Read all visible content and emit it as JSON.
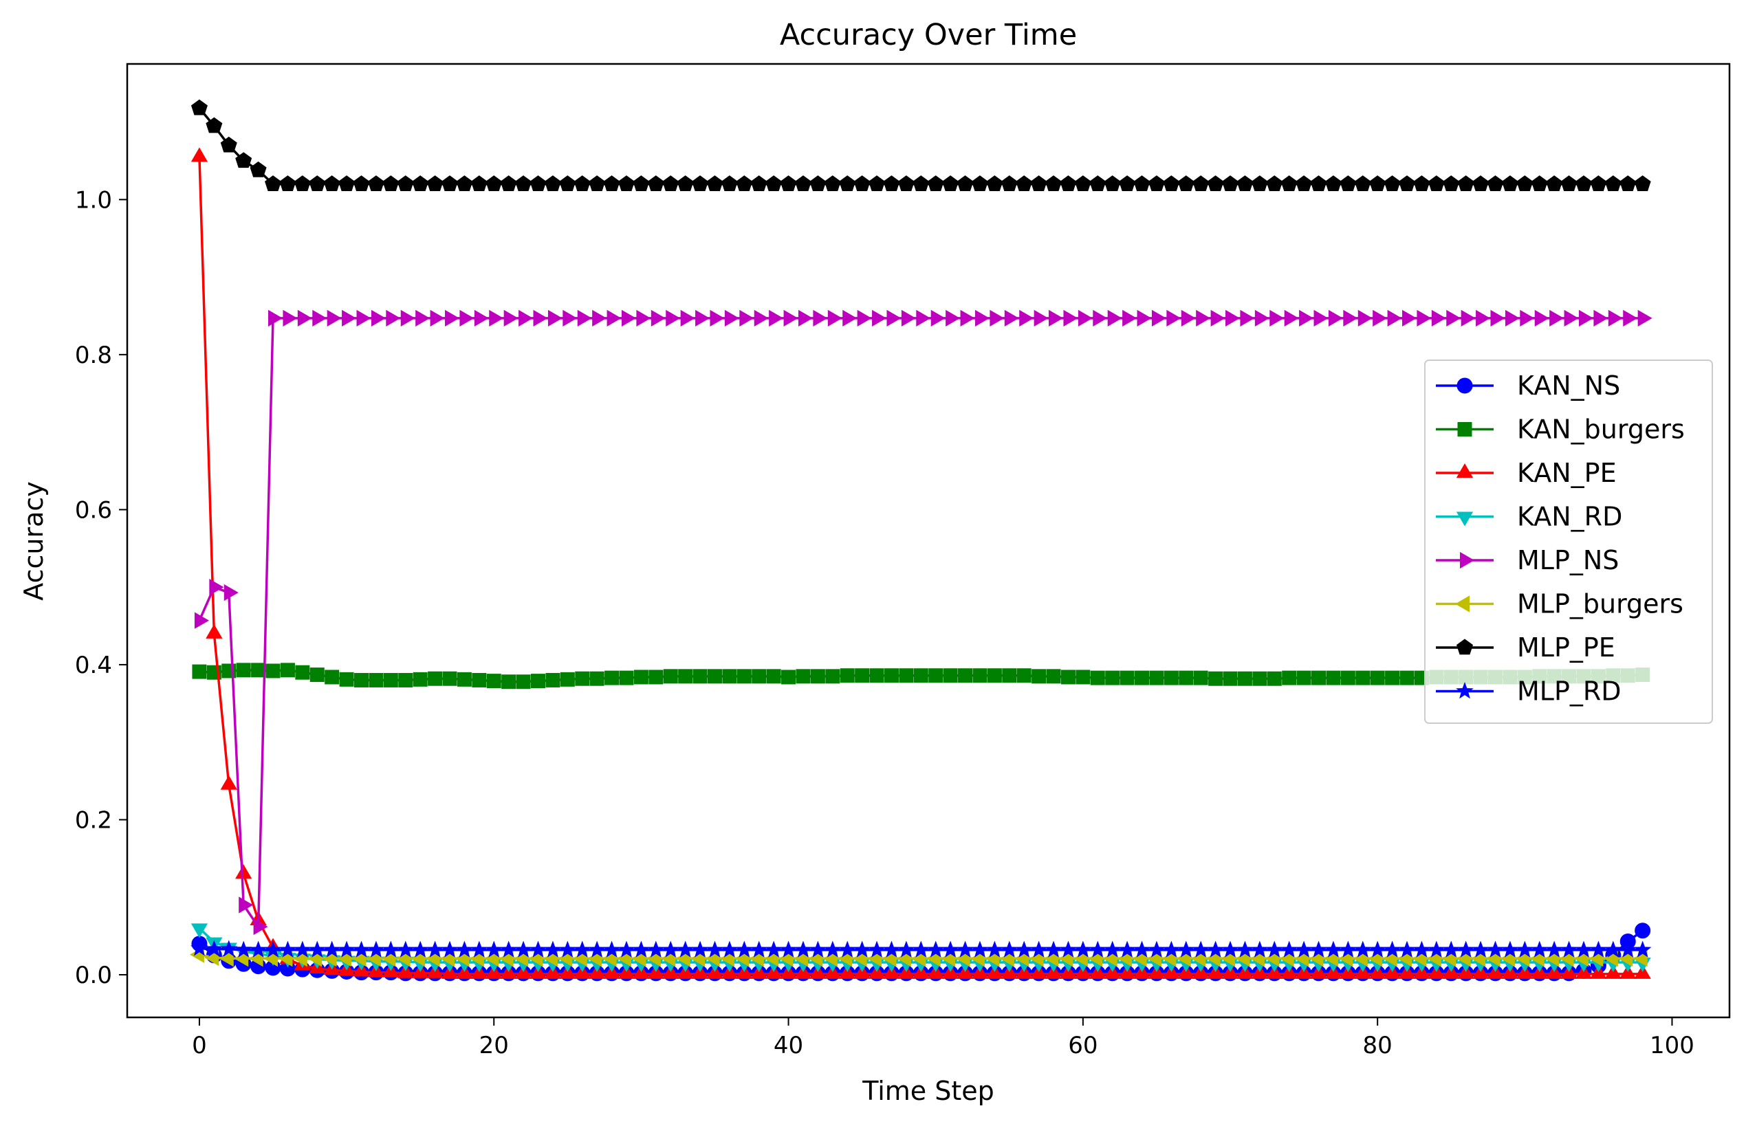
{
  "chart_data": {
    "type": "line",
    "title": "Accuracy Over Time",
    "xlabel": "Time Step",
    "ylabel": "Accuracy",
    "xlim": [
      -4.9,
      103.9
    ],
    "ylim": [
      -0.055,
      1.175
    ],
    "xticks": [
      0,
      20,
      40,
      60,
      80,
      100
    ],
    "yticks": [
      0.0,
      0.2,
      0.4,
      0.6,
      0.8,
      1.0
    ],
    "xtick_labels": [
      "0",
      "20",
      "40",
      "60",
      "80",
      "100"
    ],
    "ytick_labels": [
      "0.0",
      "0.2",
      "0.4",
      "0.6",
      "0.8",
      "1.0"
    ],
    "grid": false,
    "legend_position": "center-right",
    "x": [
      0,
      1,
      2,
      3,
      4,
      5,
      6,
      7,
      8,
      9,
      10,
      11,
      12,
      13,
      14,
      15,
      16,
      17,
      18,
      19,
      20,
      21,
      22,
      23,
      24,
      25,
      26,
      27,
      28,
      29,
      30,
      31,
      32,
      33,
      34,
      35,
      36,
      37,
      38,
      39,
      40,
      41,
      42,
      43,
      44,
      45,
      46,
      47,
      48,
      49,
      50,
      51,
      52,
      53,
      54,
      55,
      56,
      57,
      58,
      59,
      60,
      61,
      62,
      63,
      64,
      65,
      66,
      67,
      68,
      69,
      70,
      71,
      72,
      73,
      74,
      75,
      76,
      77,
      78,
      79,
      80,
      81,
      82,
      83,
      84,
      85,
      86,
      87,
      88,
      89,
      90,
      91,
      92,
      93,
      94,
      95,
      96,
      97,
      98
    ],
    "series": [
      {
        "name": "KAN_NS",
        "color": "#0000ff",
        "marker": "circle",
        "values": [
          0.04,
          0.025,
          0.018,
          0.014,
          0.011,
          0.009,
          0.008,
          0.007,
          0.006,
          0.005,
          0.004,
          0.003,
          0.003,
          0.003,
          0.002,
          0.002,
          0.002,
          0.002,
          0.002,
          0.002,
          0.002,
          0.002,
          0.002,
          0.002,
          0.002,
          0.002,
          0.002,
          0.002,
          0.002,
          0.002,
          0.002,
          0.002,
          0.002,
          0.002,
          0.002,
          0.002,
          0.002,
          0.002,
          0.002,
          0.002,
          0.002,
          0.002,
          0.002,
          0.002,
          0.002,
          0.002,
          0.002,
          0.002,
          0.002,
          0.002,
          0.002,
          0.002,
          0.002,
          0.002,
          0.002,
          0.002,
          0.002,
          0.002,
          0.002,
          0.002,
          0.002,
          0.002,
          0.002,
          0.002,
          0.002,
          0.002,
          0.002,
          0.002,
          0.002,
          0.002,
          0.002,
          0.002,
          0.002,
          0.002,
          0.002,
          0.002,
          0.002,
          0.002,
          0.002,
          0.002,
          0.002,
          0.002,
          0.002,
          0.002,
          0.002,
          0.002,
          0.002,
          0.002,
          0.002,
          0.002,
          0.002,
          0.002,
          0.002,
          0.002,
          0.005,
          0.012,
          0.025,
          0.043,
          0.057
        ]
      },
      {
        "name": "KAN_burgers",
        "color": "#008000",
        "marker": "square",
        "values": [
          0.391,
          0.39,
          0.392,
          0.393,
          0.393,
          0.392,
          0.393,
          0.39,
          0.387,
          0.384,
          0.381,
          0.38,
          0.38,
          0.38,
          0.38,
          0.381,
          0.382,
          0.382,
          0.381,
          0.38,
          0.379,
          0.378,
          0.378,
          0.379,
          0.38,
          0.381,
          0.382,
          0.382,
          0.383,
          0.383,
          0.384,
          0.384,
          0.385,
          0.385,
          0.385,
          0.385,
          0.385,
          0.385,
          0.385,
          0.385,
          0.384,
          0.385,
          0.385,
          0.385,
          0.386,
          0.386,
          0.386,
          0.386,
          0.386,
          0.386,
          0.386,
          0.386,
          0.386,
          0.386,
          0.386,
          0.386,
          0.386,
          0.385,
          0.385,
          0.384,
          0.384,
          0.383,
          0.383,
          0.383,
          0.383,
          0.383,
          0.383,
          0.383,
          0.383,
          0.382,
          0.382,
          0.382,
          0.382,
          0.382,
          0.383,
          0.383,
          0.383,
          0.383,
          0.383,
          0.383,
          0.383,
          0.383,
          0.383,
          0.383,
          0.384,
          0.384,
          0.384,
          0.384,
          0.384,
          0.384,
          0.384,
          0.385,
          0.385,
          0.385,
          0.385,
          0.385,
          0.386,
          0.386,
          0.387
        ]
      },
      {
        "name": "KAN_PE",
        "color": "#ff0000",
        "marker": "triangle-up",
        "values": [
          1.055,
          0.44,
          0.245,
          0.13,
          0.07,
          0.035,
          0.02,
          0.012,
          0.008,
          0.006,
          0.005,
          0.004,
          0.003,
          0.003,
          0.002,
          0.002,
          0.002,
          0.001,
          0.001,
          0.001,
          0.001,
          0.001,
          0.001,
          0.001,
          0.001,
          0.001,
          0.001,
          0.001,
          0.001,
          0.001,
          0.001,
          0.001,
          0.001,
          0.001,
          0.001,
          0.001,
          0.001,
          0.001,
          0.001,
          0.001,
          0.001,
          0.001,
          0.001,
          0.001,
          0.001,
          0.001,
          0.001,
          0.001,
          0.001,
          0.001,
          0.001,
          0.001,
          0.001,
          0.001,
          0.001,
          0.001,
          0.001,
          0.001,
          0.001,
          0.001,
          0.001,
          0.001,
          0.001,
          0.001,
          0.001,
          0.001,
          0.001,
          0.001,
          0.001,
          0.001,
          0.001,
          0.001,
          0.001,
          0.001,
          0.001,
          0.001,
          0.001,
          0.001,
          0.001,
          0.001,
          0.001,
          0.001,
          0.001,
          0.001,
          0.001,
          0.001,
          0.001,
          0.001,
          0.001,
          0.001,
          0.001,
          0.001,
          0.001,
          0.001,
          0.001,
          0.001,
          0.001,
          0.001,
          0.001
        ]
      },
      {
        "name": "KAN_RD",
        "color": "#00bfbf",
        "marker": "triangle-down",
        "values": [
          0.06,
          0.042,
          0.035,
          0.03,
          0.027,
          0.024,
          0.022,
          0.021,
          0.02,
          0.019,
          0.018,
          0.018,
          0.017,
          0.017,
          0.017,
          0.016,
          0.016,
          0.016,
          0.016,
          0.016,
          0.016,
          0.016,
          0.016,
          0.016,
          0.016,
          0.016,
          0.016,
          0.016,
          0.016,
          0.016,
          0.016,
          0.016,
          0.016,
          0.016,
          0.016,
          0.016,
          0.016,
          0.016,
          0.016,
          0.016,
          0.016,
          0.016,
          0.016,
          0.016,
          0.016,
          0.016,
          0.016,
          0.016,
          0.016,
          0.016,
          0.016,
          0.016,
          0.016,
          0.016,
          0.016,
          0.016,
          0.016,
          0.016,
          0.016,
          0.016,
          0.016,
          0.016,
          0.016,
          0.016,
          0.016,
          0.016,
          0.016,
          0.016,
          0.016,
          0.016,
          0.016,
          0.016,
          0.016,
          0.016,
          0.016,
          0.016,
          0.016,
          0.016,
          0.016,
          0.016,
          0.016,
          0.016,
          0.016,
          0.016,
          0.016,
          0.016,
          0.016,
          0.016,
          0.016,
          0.016,
          0.016,
          0.016,
          0.016,
          0.016,
          0.016,
          0.016,
          0.016,
          0.016,
          0.016
        ]
      },
      {
        "name": "MLP_NS",
        "color": "#bf00bf",
        "marker": "triangle-right",
        "values": [
          0.457,
          0.5,
          0.493,
          0.09,
          0.062,
          0.847,
          0.847,
          0.847,
          0.847,
          0.847,
          0.847,
          0.847,
          0.847,
          0.847,
          0.847,
          0.847,
          0.847,
          0.847,
          0.847,
          0.847,
          0.847,
          0.847,
          0.847,
          0.847,
          0.847,
          0.847,
          0.847,
          0.847,
          0.847,
          0.847,
          0.847,
          0.847,
          0.847,
          0.847,
          0.847,
          0.847,
          0.847,
          0.847,
          0.847,
          0.847,
          0.847,
          0.847,
          0.847,
          0.847,
          0.847,
          0.847,
          0.847,
          0.847,
          0.847,
          0.847,
          0.847,
          0.847,
          0.847,
          0.847,
          0.847,
          0.847,
          0.847,
          0.847,
          0.847,
          0.847,
          0.847,
          0.847,
          0.847,
          0.847,
          0.847,
          0.847,
          0.847,
          0.847,
          0.847,
          0.847,
          0.847,
          0.847,
          0.847,
          0.847,
          0.847,
          0.847,
          0.847,
          0.847,
          0.847,
          0.847,
          0.847,
          0.847,
          0.847,
          0.847,
          0.847,
          0.847,
          0.847,
          0.847,
          0.847,
          0.847,
          0.847,
          0.847,
          0.847,
          0.847,
          0.847,
          0.847,
          0.847,
          0.847,
          0.847
        ]
      },
      {
        "name": "MLP_burgers",
        "color": "#bfbf00",
        "marker": "triangle-left",
        "values": [
          0.026,
          0.022,
          0.021,
          0.021,
          0.021,
          0.021,
          0.021,
          0.021,
          0.021,
          0.021,
          0.021,
          0.021,
          0.021,
          0.021,
          0.021,
          0.021,
          0.021,
          0.021,
          0.021,
          0.021,
          0.021,
          0.021,
          0.021,
          0.021,
          0.021,
          0.021,
          0.021,
          0.021,
          0.021,
          0.021,
          0.021,
          0.021,
          0.021,
          0.021,
          0.021,
          0.021,
          0.021,
          0.021,
          0.021,
          0.021,
          0.021,
          0.021,
          0.021,
          0.021,
          0.021,
          0.021,
          0.021,
          0.021,
          0.021,
          0.021,
          0.021,
          0.021,
          0.021,
          0.021,
          0.021,
          0.021,
          0.021,
          0.021,
          0.021,
          0.021,
          0.021,
          0.021,
          0.021,
          0.021,
          0.021,
          0.021,
          0.021,
          0.021,
          0.021,
          0.021,
          0.021,
          0.021,
          0.021,
          0.021,
          0.021,
          0.021,
          0.021,
          0.021,
          0.021,
          0.021,
          0.021,
          0.021,
          0.021,
          0.021,
          0.021,
          0.021,
          0.021,
          0.021,
          0.021,
          0.021,
          0.021,
          0.021,
          0.021,
          0.021,
          0.021,
          0.021,
          0.021,
          0.021,
          0.021
        ]
      },
      {
        "name": "MLP_PE",
        "color": "#000000",
        "marker": "pentagon",
        "values": [
          1.118,
          1.095,
          1.07,
          1.05,
          1.038,
          1.02,
          1.02,
          1.02,
          1.02,
          1.02,
          1.02,
          1.02,
          1.02,
          1.02,
          1.02,
          1.02,
          1.02,
          1.02,
          1.02,
          1.02,
          1.02,
          1.02,
          1.02,
          1.02,
          1.02,
          1.02,
          1.02,
          1.02,
          1.02,
          1.02,
          1.02,
          1.02,
          1.02,
          1.02,
          1.02,
          1.02,
          1.02,
          1.02,
          1.02,
          1.02,
          1.02,
          1.02,
          1.02,
          1.02,
          1.02,
          1.02,
          1.02,
          1.02,
          1.02,
          1.02,
          1.02,
          1.02,
          1.02,
          1.02,
          1.02,
          1.02,
          1.02,
          1.02,
          1.02,
          1.02,
          1.02,
          1.02,
          1.02,
          1.02,
          1.02,
          1.02,
          1.02,
          1.02,
          1.02,
          1.02,
          1.02,
          1.02,
          1.02,
          1.02,
          1.02,
          1.02,
          1.02,
          1.02,
          1.02,
          1.02,
          1.02,
          1.02,
          1.02,
          1.02,
          1.02,
          1.02,
          1.02,
          1.02,
          1.02,
          1.02,
          1.02,
          1.02,
          1.02,
          1.02,
          1.02,
          1.02,
          1.02,
          1.02,
          1.02
        ]
      },
      {
        "name": "MLP_RD",
        "color": "#0000ff",
        "marker": "star",
        "values": [
          0.034,
          0.033,
          0.033,
          0.032,
          0.032,
          0.032,
          0.032,
          0.032,
          0.032,
          0.032,
          0.032,
          0.032,
          0.032,
          0.032,
          0.032,
          0.032,
          0.032,
          0.032,
          0.032,
          0.032,
          0.032,
          0.032,
          0.032,
          0.032,
          0.032,
          0.032,
          0.032,
          0.032,
          0.032,
          0.032,
          0.032,
          0.032,
          0.032,
          0.032,
          0.032,
          0.032,
          0.032,
          0.032,
          0.032,
          0.032,
          0.032,
          0.032,
          0.032,
          0.032,
          0.032,
          0.032,
          0.032,
          0.032,
          0.032,
          0.032,
          0.032,
          0.032,
          0.032,
          0.032,
          0.032,
          0.032,
          0.032,
          0.032,
          0.032,
          0.032,
          0.032,
          0.032,
          0.032,
          0.032,
          0.032,
          0.032,
          0.032,
          0.032,
          0.032,
          0.032,
          0.032,
          0.032,
          0.032,
          0.032,
          0.032,
          0.032,
          0.032,
          0.032,
          0.032,
          0.032,
          0.032,
          0.032,
          0.032,
          0.032,
          0.032,
          0.032,
          0.032,
          0.032,
          0.032,
          0.032,
          0.032,
          0.032,
          0.032,
          0.032,
          0.032,
          0.032,
          0.032,
          0.032,
          0.032
        ]
      }
    ]
  }
}
